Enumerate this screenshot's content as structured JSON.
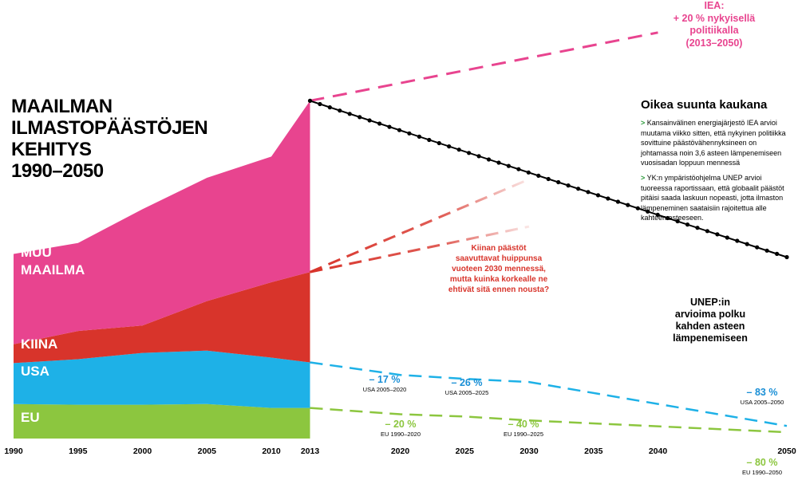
{
  "title": {
    "line1": "MAAILMAN",
    "line2": "ILMASTOPÄÄSTÖJEN",
    "line3": "KEHITYS",
    "line4": "1990–2050"
  },
  "info": {
    "heading": "Oikea suunta kaukana",
    "bullet": ">",
    "p1": "Kansainvälinen energiajärjestö IEA arvioi muutama viikko sitten, että nykyinen politiikka sovittuine päästövähennyksineen on johtamassa noin 3,6 asteen lämpenemiseen vuosisadan loppuun mennessä",
    "p2": "YK:n ympäristöohjelma UNEP arvioi tuoreessa raportissaan, että globaalit päästöt pitäisi saada laskuun nopeasti, jotta ilmaston lämpeneminen saataisiin rajoitettua alle kahteen asteeseen."
  },
  "annotations": {
    "iea1": "IEA:",
    "iea2": "+ 20 % nykyisellä",
    "iea3": "politiikalla",
    "iea4": "(2013–2050)",
    "china1": "Kiinan päästöt",
    "china2": "saavuttavat huippunsa",
    "china3": "vuoteen 2030 mennessä,",
    "china4": "mutta kuinka korkealle ne",
    "china5": "ehtivät sitä ennen nousta?",
    "unep1": "UNEP:in",
    "unep2": "arvioima polku",
    "unep3": "kahden asteen",
    "unep4": "lämpenemiseen"
  },
  "colors": {
    "muu": "#e8448f",
    "kiina": "#d8342b",
    "usa": "#1eb1e7",
    "eu": "#8cc63f",
    "unep": "#000000",
    "eu_label": "#8cc63f",
    "usa_label": "#1a8fd6",
    "iea": "#e8448f"
  },
  "chart_data": {
    "type": "area",
    "x": [
      1990,
      1995,
      2000,
      2005,
      2010,
      2013
    ],
    "x_ticks": [
      "1990",
      "1995",
      "2000",
      "2005",
      "2010",
      "2013",
      "2020",
      "2025",
      "2030",
      "2035",
      "2040",
      "2050"
    ],
    "x_tick_values": [
      1990,
      1995,
      2000,
      2005,
      2010,
      2013,
      2020,
      2025,
      2030,
      2035,
      2040,
      2050
    ],
    "xlim": [
      1990,
      2050
    ],
    "ylim": [
      0,
      44
    ],
    "series": [
      {
        "name": "EU",
        "values": [
          4.4,
          4.3,
          4.3,
          4.4,
          3.9,
          3.9
        ]
      },
      {
        "name": "USA",
        "values": [
          5.2,
          5.8,
          6.6,
          6.8,
          6.4,
          5.8
        ]
      },
      {
        "name": "KIINA",
        "values": [
          2.4,
          3.6,
          3.5,
          6.3,
          9.6,
          11.5
        ]
      },
      {
        "name": "MUU MAAILMA",
        "values": [
          11.5,
          11.2,
          14.8,
          15.7,
          16.0,
          21.8
        ]
      }
    ],
    "projections": {
      "iea": {
        "x": [
          2013,
          2040
        ],
        "y": [
          43.0,
          51.7
        ]
      },
      "unep": {
        "x": [
          2013,
          2050
        ],
        "y": [
          43.0,
          23.1
        ]
      },
      "china_high": {
        "x": [
          2013,
          2030
        ],
        "y": [
          21.2,
          33.0
        ]
      },
      "china_low": {
        "x": [
          2013,
          2030
        ],
        "y": [
          21.2,
          27.0
        ]
      },
      "usa": {
        "x": [
          2013,
          2020,
          2025,
          2030,
          2050
        ],
        "y": [
          9.7,
          8.1,
          7.6,
          7.2,
          1.6
        ]
      },
      "eu": {
        "x": [
          2013,
          2020,
          2025,
          2030,
          2050
        ],
        "y": [
          3.9,
          3.1,
          2.8,
          2.3,
          0.8
        ]
      }
    },
    "unep_dots_count": 48,
    "labels": [
      {
        "pct": "– 17 %",
        "sub": "USA 2005–2020",
        "kind": "usa"
      },
      {
        "pct": "– 26 %",
        "sub": "USA 2005–2025",
        "kind": "usa"
      },
      {
        "pct": "– 83 %",
        "sub": "USA 2005–2050",
        "kind": "usa"
      },
      {
        "pct": "– 20 %",
        "sub": "EU 1990–2020",
        "kind": "eu"
      },
      {
        "pct": "– 40 %",
        "sub": "EU 1990–2025",
        "kind": "eu"
      },
      {
        "pct": "– 80 %",
        "sub": "EU 1990–2050",
        "kind": "eu"
      }
    ],
    "region_labels": [
      "MUU",
      "MAAILMA",
      "KIINA",
      "USA",
      "EU"
    ]
  }
}
